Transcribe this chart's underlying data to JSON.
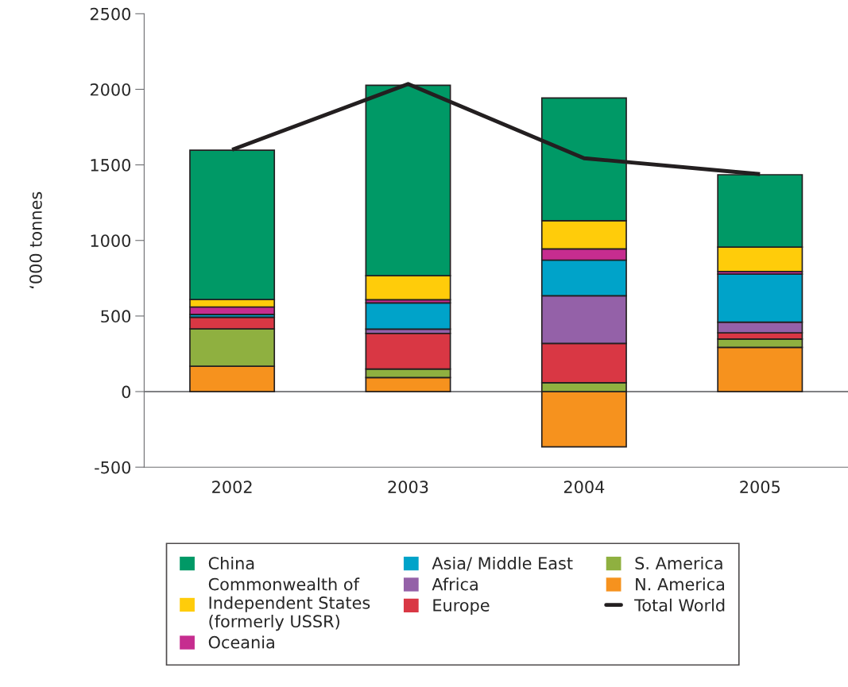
{
  "chart_data": {
    "type": "bar",
    "stacked": true,
    "ylabel": "‘000 tonnes",
    "categories": [
      "2002",
      "2003",
      "2004",
      "2005"
    ],
    "ylim": [
      -500,
      2500
    ],
    "yticks": [
      -500,
      0,
      500,
      1000,
      1500,
      2000,
      2500
    ],
    "grid": false,
    "legend": "bottom",
    "ref_lines": [
      {
        "axis": "y",
        "value": 0,
        "color": "#6d6e71"
      }
    ],
    "series": [
      {
        "name": "N. America",
        "color": "#f6921e",
        "values": [
          168,
          93,
          -366,
          293
        ]
      },
      {
        "name": "S. America",
        "color": "#8fb040",
        "values": [
          247,
          56,
          59,
          55
        ]
      },
      {
        "name": "Europe",
        "color": "#d93744",
        "values": [
          77,
          236,
          260,
          41
        ]
      },
      {
        "name": "Africa",
        "color": "#9461a8",
        "values": [
          0,
          28,
          315,
          70
        ]
      },
      {
        "name": "Asia/ Middle East",
        "color": "#00a3c9",
        "values": [
          19,
          174,
          236,
          318
        ]
      },
      {
        "name": "Oceania",
        "color": "#c62d8f",
        "values": [
          49,
          21,
          74,
          18
        ]
      },
      {
        "name": "Commonwealth of\nIndependent States\n(formerly USSR)",
        "color": "#ffcc0a",
        "values": [
          49,
          159,
          187,
          161
        ]
      },
      {
        "name": "China",
        "color": "#009966",
        "values": [
          988,
          1260,
          812,
          479
        ]
      },
      {
        "name": "Total World",
        "type": "line",
        "color": "#231f20",
        "values": [
          1600,
          2035,
          1544,
          1439
        ]
      }
    ]
  }
}
